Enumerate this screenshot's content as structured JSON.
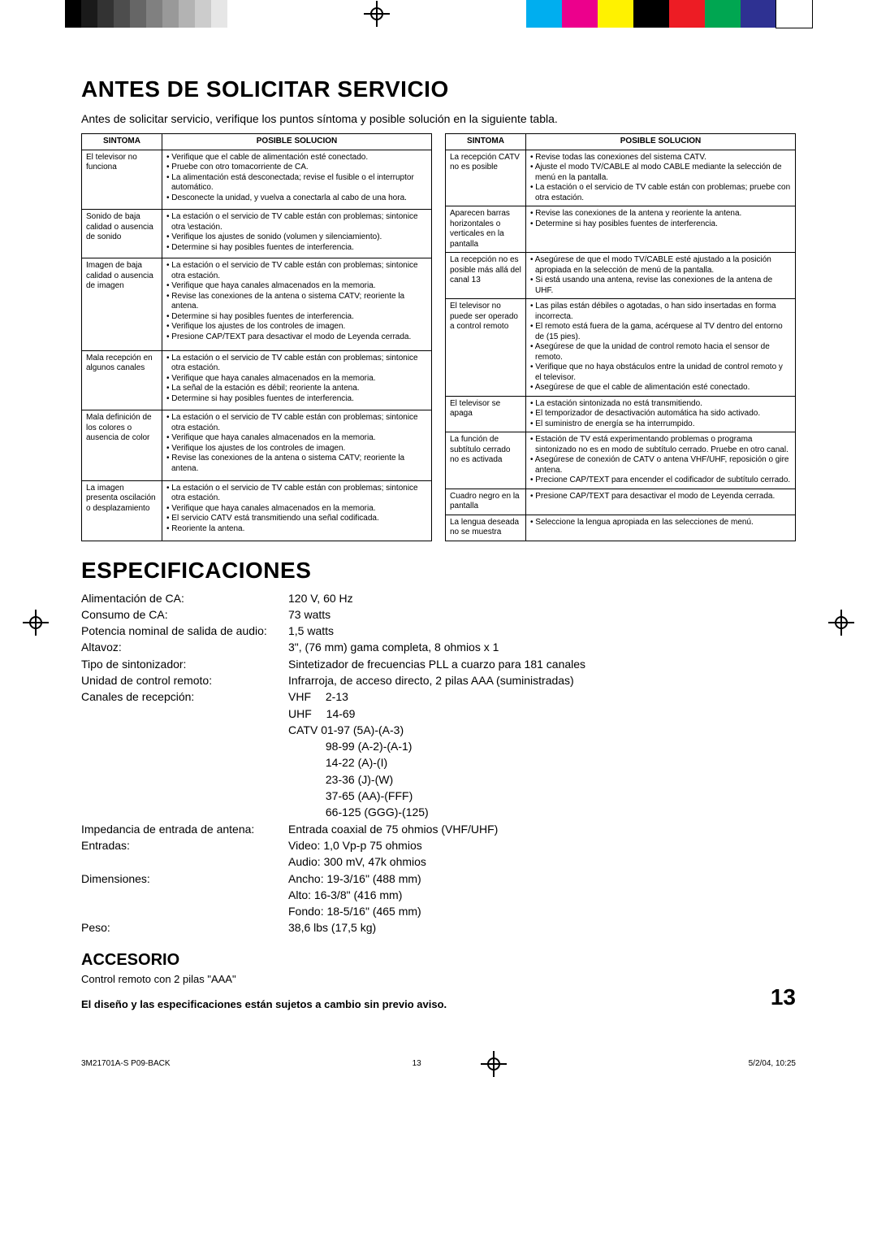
{
  "colorbar": {
    "grays": [
      "#000000",
      "#1a1a1a",
      "#333333",
      "#4d4d4d",
      "#666666",
      "#808080",
      "#999999",
      "#b3b3b3",
      "#cccccc",
      "#e6e6e6"
    ],
    "colors": [
      "#00aeef",
      "#ec008c",
      "#fff200",
      "#000000",
      "#ed1c24",
      "#00a651",
      "#2e3192",
      "#ffffff"
    ]
  },
  "title1": "ANTES DE SOLICITAR SERVICIO",
  "intro": "Antes de solicitar servicio, verifique los puntos síntoma y posible solución en la siguiente tabla.",
  "th_sintoma": "SINTOMA",
  "th_solucion": "POSIBLE SOLUCION",
  "left_rows": [
    {
      "sym": "El televisor no funciona",
      "sol": [
        "• Verifique que el cable de alimentación esté conectado.",
        "• Pruebe con otro tomacorriente de CA.",
        "• La alimentación está desconectada; revise el fusible o el interruptor automático.",
        "• Desconecte la unidad, y vuelva a conectarla al cabo de una hora."
      ]
    },
    {
      "sym": "Sonido de baja calidad o ausencia de sonido",
      "sol": [
        "• La estación o el servicio de TV cable están con problemas; sintonice otra \\estación.",
        "• Verifique los ajustes de sonido (volumen y silenciamiento).",
        "• Determine si hay posibles fuentes de interferencia."
      ]
    },
    {
      "sym": "Imagen de baja calidad o ausencia de imagen",
      "sol": [
        "• La estación o el servicio de TV cable están con problemas; sintonice otra estación.",
        "• Verifique que haya canales almacenados en la memoria.",
        "• Revise las conexiones de la antena o sistema CATV; reoriente la antena.",
        "• Determine si hay posibles fuentes de interferencia.",
        "• Verifique los ajustes de los controles de imagen.",
        "• Presione CAP/TEXT para desactivar el modo de Leyenda cerrada."
      ]
    },
    {
      "sym": "Mala recepción en algunos canales",
      "sol": [
        "• La estación o el servicio de TV cable están con problemas; sintonice otra estación.",
        "• Verifique que haya canales almacenados en la memoria.",
        "• La señal de la estación es débil; reoriente la antena.",
        "• Determine si hay posibles fuentes de interferencia."
      ]
    },
    {
      "sym": "Mala definición de los colores o ausencia de color",
      "sol": [
        "• La estación o el servicio de TV cable están con problemas; sintonice otra estación.",
        "• Verifique que haya canales almacenados en la memoria.",
        "• Verifique los ajustes de los controles de imagen.",
        "• Revise las conexiones de la antena o sistema CATV; reoriente la antena."
      ]
    },
    {
      "sym": "La imagen presenta oscilación o desplazamiento",
      "sol": [
        "• La estación o el servicio de TV cable están con problemas; sintonice otra estación.",
        "• Verifique que haya canales almacenados en la memoria.",
        "• El servicio CATV está transmitiendo una señal codificada.",
        "• Reoriente la antena."
      ]
    }
  ],
  "right_rows": [
    {
      "sym": "La recepción CATV no es posible",
      "sol": [
        "• Revise todas las conexiones del sistema CATV.",
        "• Ajuste el modo TV/CABLE al modo CABLE mediante la selección de menú en la pantalla.",
        "• La estación o el servicio de TV cable están con problemas; pruebe con otra estación."
      ]
    },
    {
      "sym": "Aparecen barras horizontales o verticales en la pantalla",
      "sol": [
        "• Revise las conexiones de la antena y reoriente la antena.",
        "• Determine si hay posibles fuentes de interferencia."
      ]
    },
    {
      "sym": "La recepción no es posible más allá del canal 13",
      "sol": [
        "• Asegúrese de que el modo TV/CABLE esté ajustado a la posición apropiada en la selección de menú de la pantalla.",
        "• Si está usando una antena, revise las conexiones de la antena de UHF."
      ]
    },
    {
      "sym": "El televisor no puede ser operado a control remoto",
      "sol": [
        "• Las pilas están débiles o agotadas, o han sido insertadas en forma incorrecta.",
        "• El remoto está fuera de la gama, acérquese al TV dentro del entorno de (15 pies).",
        "• Asegúrese de que la unidad de control remoto hacia el sensor de remoto.",
        "• Verifique que no haya obstáculos entre la unidad de control remoto y el televisor.",
        "• Asegúrese de que el cable de alimentación esté conectado."
      ]
    },
    {
      "sym": "El televisor se apaga",
      "sol": [
        "• La estación sintonizada no está transmitiendo.",
        "• El temporizador de desactivación automática ha sido activado.",
        "• El suministro de energía se ha interrumpido."
      ]
    },
    {
      "sym": "La función de subtítulo cerrado no es activada",
      "sol": [
        "• Estación de TV está experimentando problemas o programa sintonizado no es en modo de subtítulo cerrado. Pruebe en otro canal.",
        "• Asegúrese de conexión de CATV o antena VHF/UHF, reposición o gire antena.",
        "• Precione CAP/TEXT para encender el codificador de subtítulo cerrado."
      ]
    },
    {
      "sym": "Cuadro negro en la pantalla",
      "sol": [
        "• Presione CAP/TEXT para desactivar el modo de Leyenda cerrada."
      ]
    },
    {
      "sym": "La lengua deseada no se muestra",
      "sol": [
        "• Seleccione la lengua apropiada en las selecciones de menú."
      ]
    }
  ],
  "title2": "ESPECIFICACIONES",
  "specs": [
    {
      "k": "Alimentación de CA:",
      "v": "120 V, 60 Hz"
    },
    {
      "k": "Consumo de CA:",
      "v": "73 watts"
    },
    {
      "k": "Potencia nominal de salida de audio:",
      "v": "1,5 watts"
    },
    {
      "k": "Altavoz:",
      "v": "3\", (76 mm) gama completa, 8 ohmios x 1"
    },
    {
      "k": "Tipo de sintonizador:",
      "v": "Sintetizador de frecuencias PLL a cuarzo para 181 canales"
    },
    {
      "k": "Unidad de control remoto:",
      "v": "Infrarroja, de acceso directo, 2 pilas AAA (suministradas)"
    },
    {
      "k": "Canales de recepción:",
      "v": "VHF  2-13",
      "sub": [
        "UHF  14-69",
        "CATV 01-97 (5A)-(A-3)",
        "    98-99 (A-2)-(A-1)",
        "    14-22 (A)-(I)",
        "    23-36 (J)-(W)",
        "    37-65 (AA)-(FFF)",
        "    66-125 (GGG)-(125)"
      ]
    },
    {
      "k": "Impedancia de entrada de antena:",
      "v": "Entrada coaxial de 75 ohmios (VHF/UHF)"
    },
    {
      "k": "Entradas:",
      "v": "Video: 1,0 Vp-p 75 ohmios",
      "sub": [
        "Audio: 300 mV, 47k ohmios"
      ]
    },
    {
      "k": "Dimensiones:",
      "v": "Ancho: 19-3/16\" (488 mm)",
      "sub": [
        "Alto: 16-3/8\" (416 mm)",
        "Fondo: 18-5/16\" (465 mm)"
      ]
    },
    {
      "k": "Peso:",
      "v": "38,6 lbs (17,5 kg)"
    }
  ],
  "title3": "ACCESORIO",
  "accesorio": "Control remoto con 2 pilas \"AAA\"",
  "disclaimer": "El diseño y las especificaciones están sujetos a cambio sin previo aviso.",
  "pagenum": "13",
  "footer": {
    "left": "3M21701A-S P09-BACK",
    "mid": "13",
    "right": "5/2/04, 10:25"
  }
}
